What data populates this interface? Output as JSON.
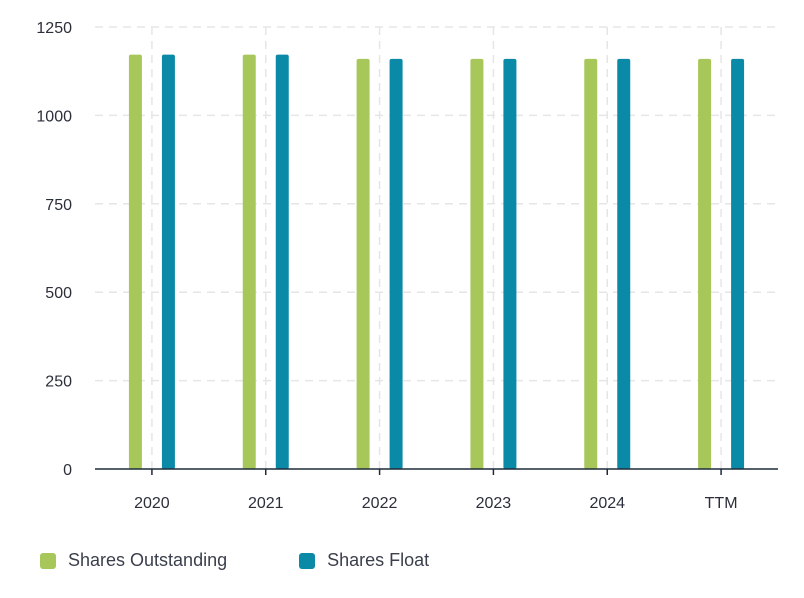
{
  "chart_data": {
    "type": "bar",
    "categories": [
      "2020",
      "2021",
      "2022",
      "2023",
      "2024",
      "TTM"
    ],
    "series": [
      {
        "name": "Shares Outstanding",
        "color": "#a8c75a",
        "values": [
          1172,
          1172,
          1160,
          1160,
          1160,
          1160
        ]
      },
      {
        "name": "Shares Float",
        "color": "#0a8aa6",
        "values": [
          1172,
          1172,
          1160,
          1160,
          1160,
          1160
        ]
      }
    ],
    "ylim": [
      0,
      1250
    ],
    "yticks": [
      "0",
      "250",
      "500",
      "750",
      "1000",
      "1250"
    ],
    "grid": true,
    "legend": "bottom-left"
  }
}
